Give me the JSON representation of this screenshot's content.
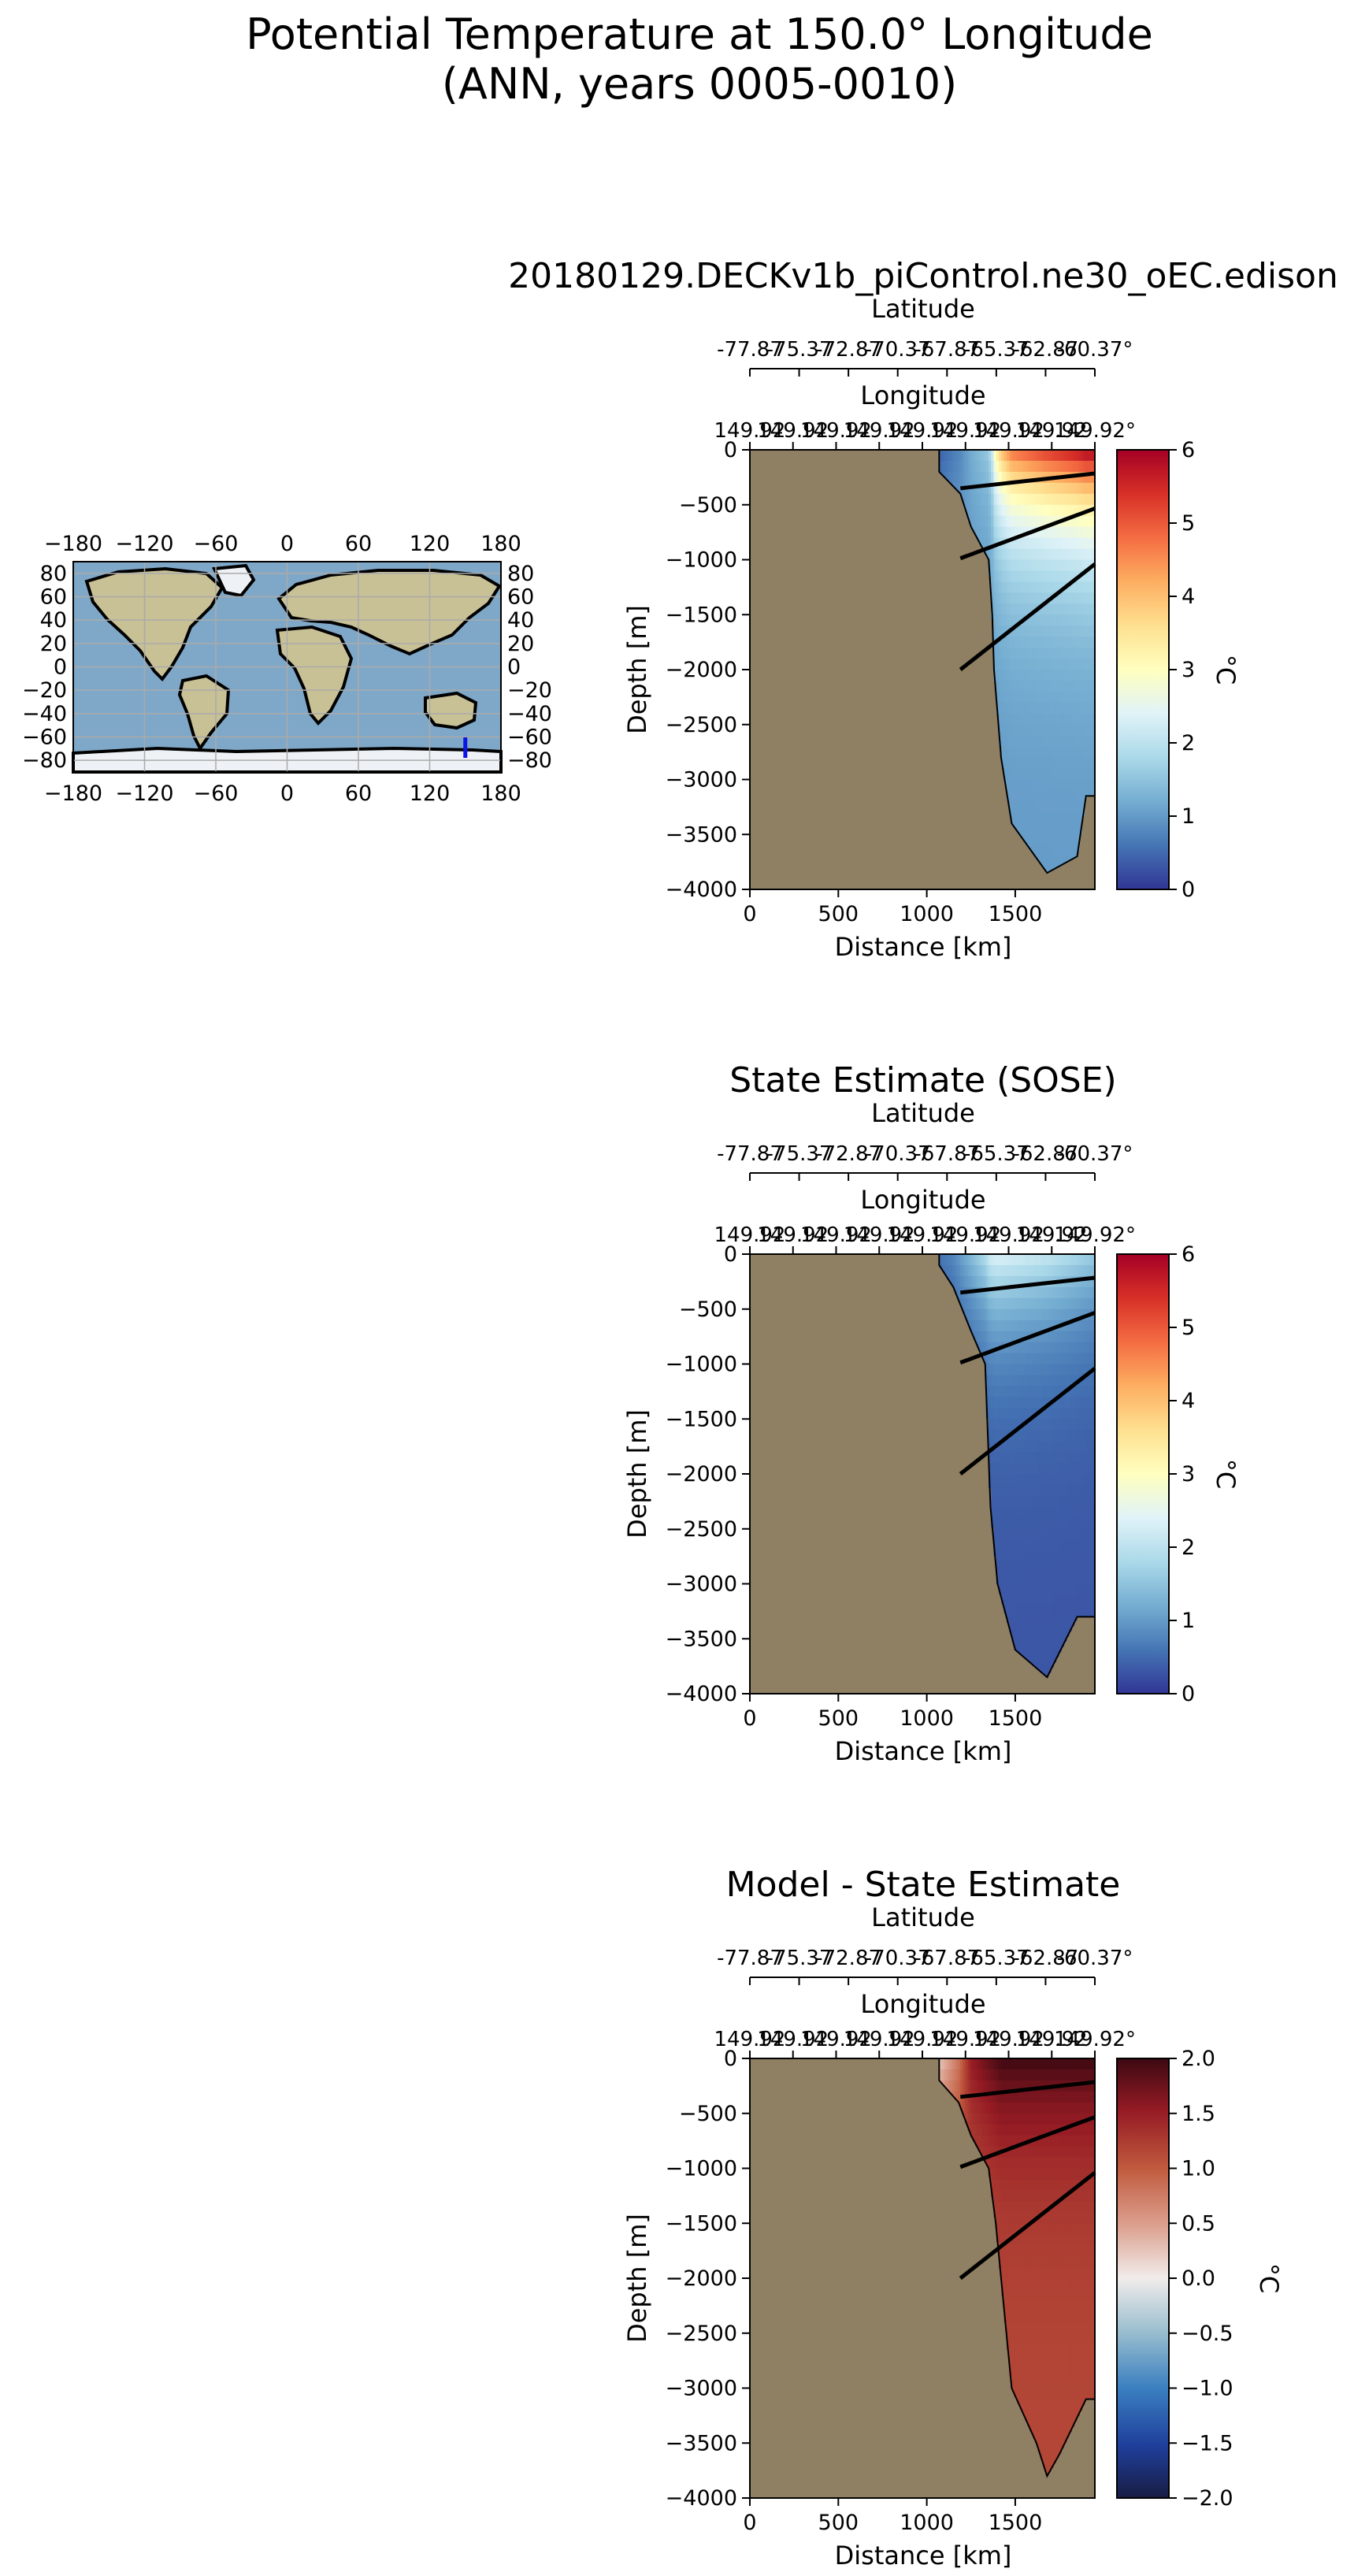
{
  "suptitle": {
    "line1": "Potential Temperature at 150.0° Longitude",
    "line2": "(ANN, years 0005-0010)"
  },
  "colors": {
    "land": "#8f7f63",
    "contour": "#000000",
    "transect": "#0a14e6",
    "ocean_map": "#7fa8c8",
    "land_map": "#c9c196",
    "ice_map": "#eef2f6"
  },
  "inset_map": {
    "xticks": [
      "−180",
      "−120",
      "−60",
      "0",
      "60",
      "120",
      "180"
    ],
    "yticks_left": [
      "80",
      "60",
      "40",
      "20",
      "0",
      "−20",
      "−40",
      "−60",
      "−80"
    ],
    "yticks_right": [
      "80",
      "60",
      "40",
      "20",
      "0",
      "−20",
      "−40",
      "−60",
      "−80"
    ],
    "transect": {
      "lon": 150.0,
      "lat_min": -77.87,
      "lat_max": -60.37
    }
  },
  "chart_data": [
    {
      "type": "heatmap",
      "title": "20180129.DECKv1b_piControl.ne30_oEC.edison",
      "xlabel": "Distance [km]",
      "ylabel": "Depth [m]",
      "xlim": [
        0,
        1950
      ],
      "ylim": [
        -4000,
        0
      ],
      "xticks": [
        "0",
        "500",
        "1000",
        "1500"
      ],
      "yticks": [
        "0",
        "−500",
        "−1000",
        "−1500",
        "−2000",
        "−2500",
        "−3000",
        "−3500",
        "−4000"
      ],
      "lat_axis_label": "Latitude",
      "lat_ticks": [
        "-77.87",
        "-75.37",
        "-72.87",
        "-70.37",
        "-67.87",
        "-65.37",
        "-62.87",
        "-60.37°"
      ],
      "lon_axis_label": "Longitude",
      "lon_ticks": [
        "149.92",
        "149.92",
        "149.92",
        "149.92",
        "149.92",
        "149.92",
        "149.92",
        "149.92",
        "149.92°"
      ],
      "colorbar": {
        "label": "°C",
        "cmap": "RdYlBu_r",
        "vmin": 0,
        "vmax": 6,
        "ticks": [
          "0",
          "1",
          "2",
          "3",
          "4",
          "5",
          "6"
        ]
      },
      "profile": {
        "distance_km": [
          1070,
          1190,
          1250,
          1350,
          1370,
          1380,
          1420,
          1480,
          1680,
          1850,
          1900,
          1950
        ],
        "bottom_m": [
          -200,
          -400,
          -700,
          -1000,
          -1500,
          -2000,
          -2800,
          -3400,
          -3850,
          -3700,
          -3150,
          -3150
        ],
        "surface_temp": [
          0.4,
          0.8,
          1.2,
          1.6,
          2.2,
          3.0,
          4.0,
          4.8,
          5.4,
          5.8,
          6.0,
          6.0
        ],
        "deep_temp": 1.0
      }
    },
    {
      "type": "heatmap",
      "title": "State Estimate (SOSE)",
      "xlabel": "Distance [km]",
      "ylabel": "Depth [m]",
      "xlim": [
        0,
        1950
      ],
      "ylim": [
        -4000,
        0
      ],
      "xticks": [
        "0",
        "500",
        "1000",
        "1500"
      ],
      "yticks": [
        "0",
        "−500",
        "−1000",
        "−1500",
        "−2000",
        "−2500",
        "−3000",
        "−3500",
        "−4000"
      ],
      "lat_axis_label": "Latitude",
      "lat_ticks": [
        "-77.87",
        "-75.37",
        "-72.87",
        "-70.37",
        "-67.87",
        "-65.37",
        "-62.87",
        "-60.37°"
      ],
      "lon_axis_label": "Longitude",
      "lon_ticks": [
        "149.92",
        "149.92",
        "149.92",
        "149.92",
        "149.92",
        "149.92",
        "149.92",
        "149.92",
        "149.92°"
      ],
      "colorbar": {
        "label": "°C",
        "cmap": "RdYlBu_r",
        "vmin": 0,
        "vmax": 6,
        "ticks": [
          "0",
          "1",
          "2",
          "3",
          "4",
          "5",
          "6"
        ]
      },
      "profile": {
        "distance_km": [
          1070,
          1150,
          1250,
          1330,
          1360,
          1400,
          1500,
          1680,
          1850,
          1950
        ],
        "bottom_m": [
          -100,
          -300,
          -700,
          -1000,
          -2300,
          -3000,
          -3600,
          -3850,
          -3300,
          -3300
        ],
        "surface_temp": [
          0.6,
          0.8,
          1.4,
          1.9,
          2.3,
          2.4,
          2.3,
          2.1,
          1.8,
          1.6
        ],
        "deep_temp": 0.3
      }
    },
    {
      "type": "heatmap",
      "title": "Model - State Estimate",
      "xlabel": "Distance [km]",
      "ylabel": "Depth [m]",
      "xlim": [
        0,
        1950
      ],
      "ylim": [
        -4000,
        0
      ],
      "xticks": [
        "0",
        "500",
        "1000",
        "1500"
      ],
      "yticks": [
        "0",
        "−500",
        "−1000",
        "−1500",
        "−2000",
        "−2500",
        "−3000",
        "−3500",
        "−4000"
      ],
      "lat_axis_label": "Latitude",
      "lat_ticks": [
        "-77.87",
        "-75.37",
        "-72.87",
        "-70.37",
        "-67.87",
        "-65.37",
        "-62.87",
        "-60.37°"
      ],
      "lon_axis_label": "Longitude",
      "lon_ticks": [
        "149.92",
        "149.92",
        "149.92",
        "149.92",
        "149.92",
        "149.92",
        "149.92",
        "149.92",
        "149.92°"
      ],
      "colorbar": {
        "label": "°C",
        "cmap": "balance",
        "vmin": -2,
        "vmax": 2,
        "ticks": [
          "−2.0",
          "−1.5",
          "−1.0",
          "−0.5",
          "0.0",
          "0.5",
          "1.0",
          "1.5",
          "2.0"
        ]
      },
      "profile": {
        "distance_km": [
          1070,
          1180,
          1250,
          1350,
          1390,
          1420,
          1480,
          1620,
          1680,
          1750,
          1900,
          1950
        ],
        "bottom_m": [
          -200,
          -400,
          -700,
          -1000,
          -1500,
          -2000,
          -3000,
          -3500,
          -3800,
          -3600,
          -3100,
          -3100
        ],
        "surface_temp": [
          0.2,
          0.8,
          1.5,
          1.8,
          1.9,
          2.0,
          2.0,
          2.0,
          2.0,
          2.0,
          2.0,
          2.0
        ],
        "deep_temp": 1.15
      }
    }
  ]
}
